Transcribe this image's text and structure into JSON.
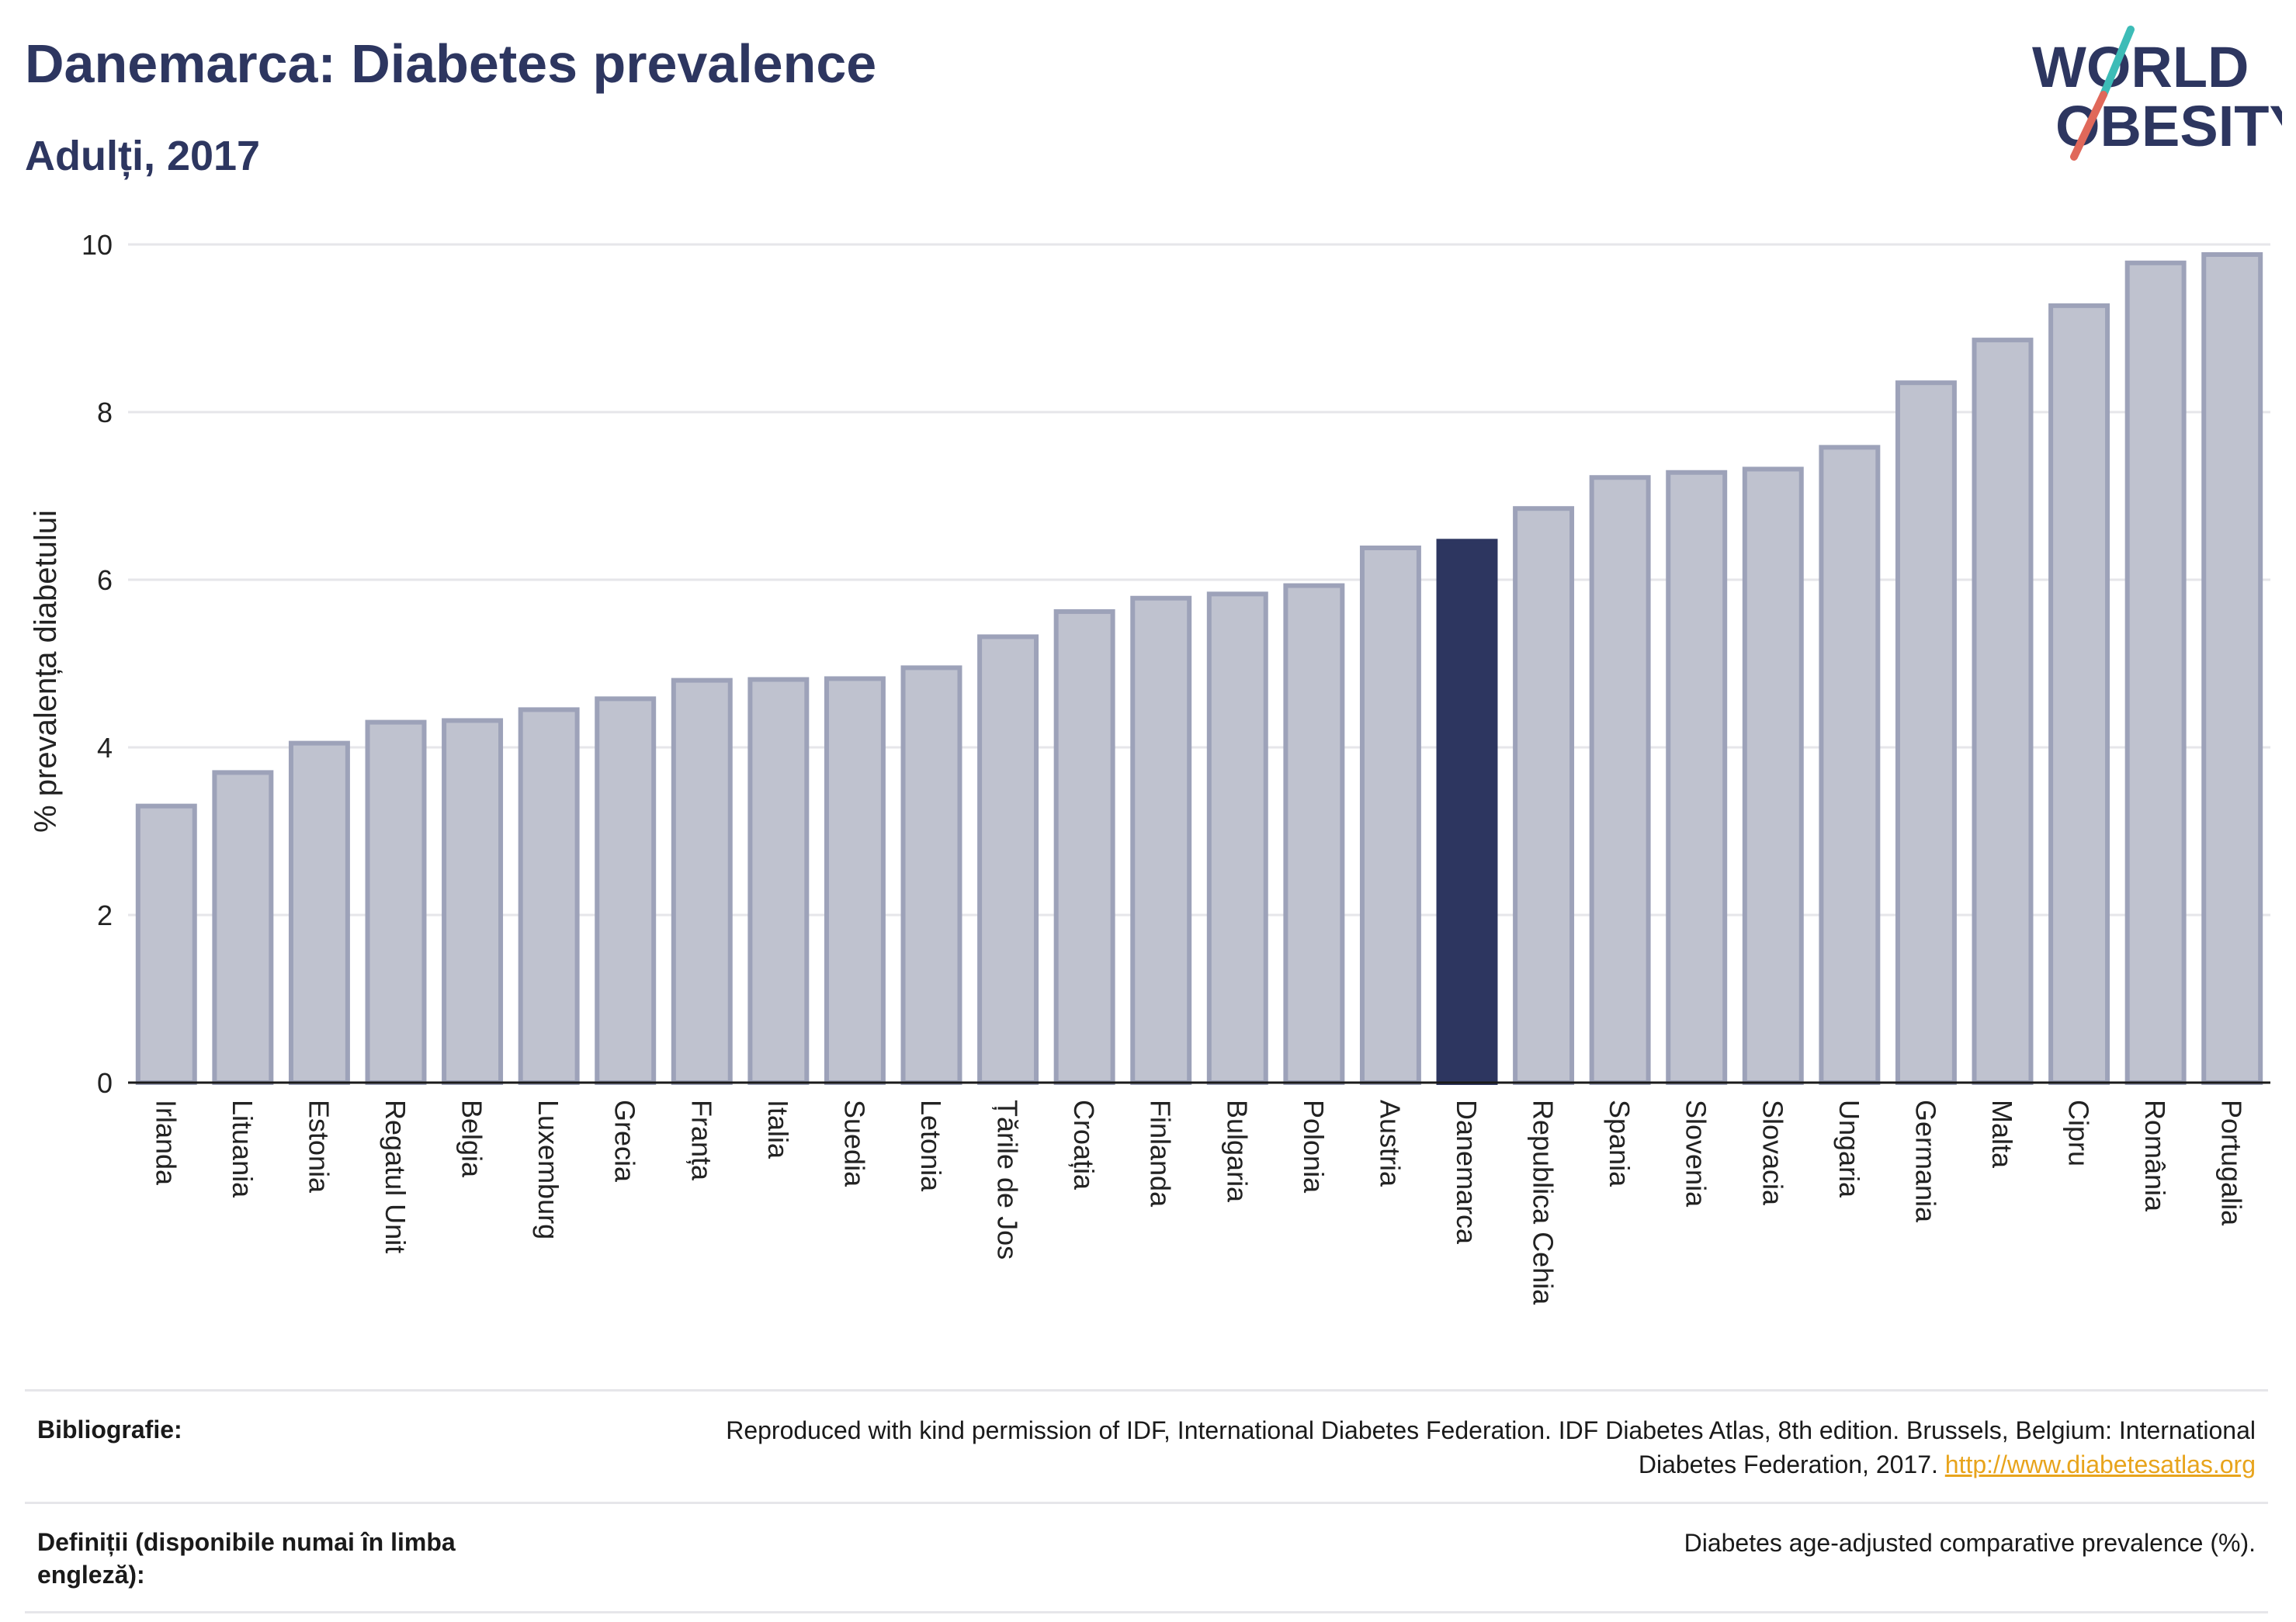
{
  "header": {
    "title": "Danemarca: Diabetes prevalence",
    "subtitle": "Adulți, 2017"
  },
  "logo": {
    "line1": "WORLD",
    "line2": "OBESITY",
    "slash_color_top": "#3dbcb7",
    "slash_color_bottom": "#e0685a"
  },
  "colors": {
    "bar_fill": "#bfc2cf",
    "bar_stroke": "#9da2b9",
    "highlight": "#2d3660",
    "grid": "#e6e6ea",
    "axis": "#1a1a1a"
  },
  "chart_data": {
    "type": "bar",
    "title": "Danemarca: Diabetes prevalence",
    "subtitle": "Adulți, 2017",
    "xlabel": "",
    "ylabel": "% prevalența diabetului",
    "ylim": [
      0,
      10
    ],
    "yticks": [
      0,
      2,
      4,
      6,
      8,
      10
    ],
    "grid": true,
    "highlight": "Danemarca",
    "categories": [
      "Irlanda",
      "Lituania",
      "Estonia",
      "Regatul Unit",
      "Belgia",
      "Luxemburg",
      "Grecia",
      "Franța",
      "Italia",
      "Suedia",
      "Letonia",
      "Țările de Jos",
      "Croația",
      "Finlanda",
      "Bulgaria",
      "Polonia",
      "Austria",
      "Danemarca",
      "Republica Cehia",
      "Spania",
      "Slovenia",
      "Slovacia",
      "Ungaria",
      "Germania",
      "Malta",
      "Cipru",
      "România",
      "Portugalia"
    ],
    "values": [
      3.3,
      3.7,
      4.05,
      4.3,
      4.32,
      4.45,
      4.58,
      4.8,
      4.81,
      4.82,
      4.95,
      5.32,
      5.62,
      5.78,
      5.83,
      5.93,
      6.38,
      6.46,
      6.85,
      7.22,
      7.28,
      7.32,
      7.58,
      8.35,
      8.86,
      9.27,
      9.78,
      9.88
    ]
  },
  "footer": {
    "rows": [
      {
        "label": "Bibliografie:",
        "text": "Reproduced with kind permission of IDF, International Diabetes Federation. IDF Diabetes Atlas, 8th edition. Brussels, Belgium: International Diabetes Federation, 2017.",
        "link": "http://www.diabetesatlas.org"
      },
      {
        "label": "Definiții (disponibile numai în limba engleză):",
        "text": "Diabetes age-adjusted comparative prevalence (%).",
        "link": ""
      }
    ]
  }
}
